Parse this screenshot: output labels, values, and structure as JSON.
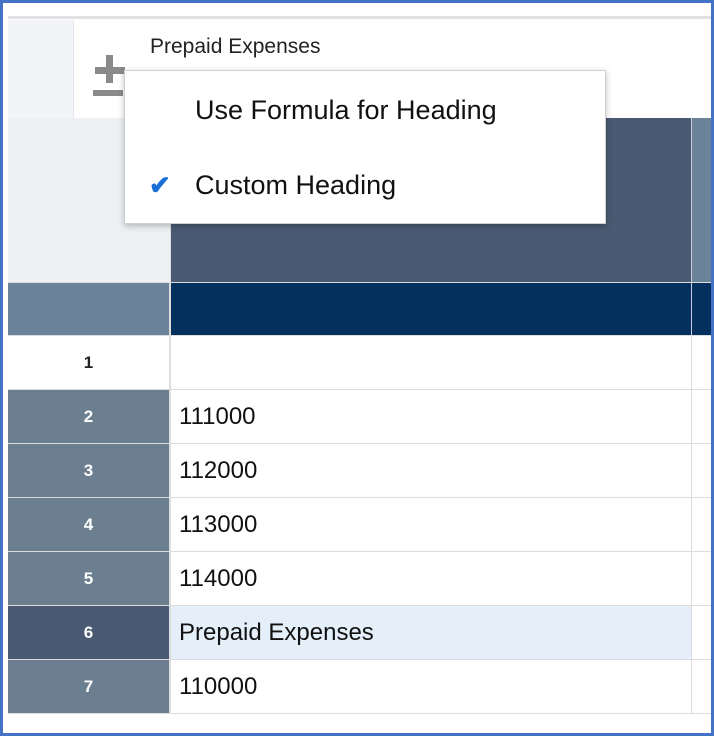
{
  "header": {
    "title": "Prepaid Expenses",
    "icon": "plus-minus-icon"
  },
  "menu": {
    "items": [
      {
        "label": "Use Formula for Heading",
        "checked": false
      },
      {
        "label": "Custom Heading",
        "checked": true
      }
    ],
    "check_icon": "checkmark-icon"
  },
  "rows": [
    {
      "num": "1",
      "value": ""
    },
    {
      "num": "2",
      "value": "111000"
    },
    {
      "num": "3",
      "value": "112000"
    },
    {
      "num": "4",
      "value": "113000"
    },
    {
      "num": "5",
      "value": "114000"
    },
    {
      "num": "6",
      "value": "Prepaid Expenses"
    },
    {
      "num": "7",
      "value": "110000"
    }
  ],
  "colors": {
    "header_dark": "#4a5a72",
    "header_navy": "#04305e",
    "row_header": "#6b7f91",
    "selected_row": "#e4eff9",
    "check": "#1a6fd6",
    "frame": "#4472c4"
  }
}
